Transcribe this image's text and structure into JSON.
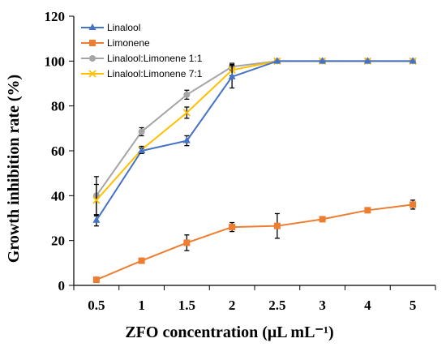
{
  "chart_data": {
    "type": "line",
    "categories": [
      "0.5",
      "1",
      "1.5",
      "2",
      "2.5",
      "3",
      "4",
      "5"
    ],
    "xlabel": "ZFO concentration (μL mL⁻¹)",
    "ylabel": "Growth inhibition rate (%)",
    "ylim": [
      0,
      120
    ],
    "yticks": [
      "0",
      "20",
      "40",
      "60",
      "80",
      "100",
      "120"
    ],
    "grid": false,
    "legend_position": "top-left",
    "series": [
      {
        "name": "Linalool",
        "color": "#4472c4",
        "marker": "triangle",
        "values": [
          29,
          60,
          64.5,
          93,
          100,
          100,
          100,
          100
        ],
        "errors": [
          2.5,
          1.2,
          2.2,
          5,
          0,
          0,
          0,
          0
        ]
      },
      {
        "name": "Limonene",
        "color": "#ed7d31",
        "marker": "square",
        "values": [
          2.5,
          11,
          19,
          26,
          26.5,
          29.5,
          33.5,
          36
        ],
        "errors": [
          0,
          0,
          3.5,
          2,
          5.5,
          0,
          0,
          2
        ]
      },
      {
        "name": "Linalool:Limonene 1:1",
        "color": "#a5a5a5",
        "marker": "circle",
        "values": [
          40,
          68.5,
          85,
          97.5,
          100,
          100,
          100,
          100
        ],
        "errors": [
          8.5,
          1.8,
          2,
          1.5,
          0,
          0,
          0,
          0
        ]
      },
      {
        "name": "Linalool:Limonene 7:1",
        "color": "#ffc000",
        "marker": "x",
        "values": [
          38,
          60.5,
          77,
          96,
          100,
          100,
          100,
          100
        ],
        "errors": [
          7,
          1.5,
          2.5,
          2.5,
          0,
          0,
          0,
          0
        ]
      }
    ]
  }
}
